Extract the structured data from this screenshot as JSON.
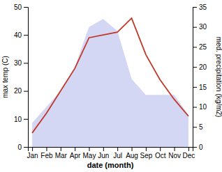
{
  "chart_data": {
    "type": "line",
    "categories": [
      "Jan",
      "Feb",
      "Mar",
      "Apr",
      "May",
      "Jun",
      "Jul",
      "Aug",
      "Sep",
      "Oct",
      "Nov",
      "Dec"
    ],
    "series": [
      {
        "type": "area",
        "axis": "y2",
        "color": "#c5caf0",
        "values": [
          6,
          10,
          14,
          20,
          30,
          32,
          29,
          17,
          13,
          13,
          13,
          8
        ]
      },
      {
        "type": "line",
        "color": "#c0392b",
        "values": [
          5,
          12,
          20,
          28,
          39,
          40,
          41,
          46,
          33,
          24,
          17,
          11
        ]
      }
    ],
    "xlabel": "date (month)",
    "ylabel": "max temp (C)",
    "y2label": "med. precipitation (kg/m2)",
    "ylim": [
      0,
      50
    ],
    "yticks": [
      0,
      10,
      20,
      30,
      40,
      50
    ],
    "y2lim": [
      0,
      35
    ],
    "y2ticks": [
      0,
      5,
      10,
      15,
      20,
      25,
      30,
      35
    ],
    "grid": false
  }
}
